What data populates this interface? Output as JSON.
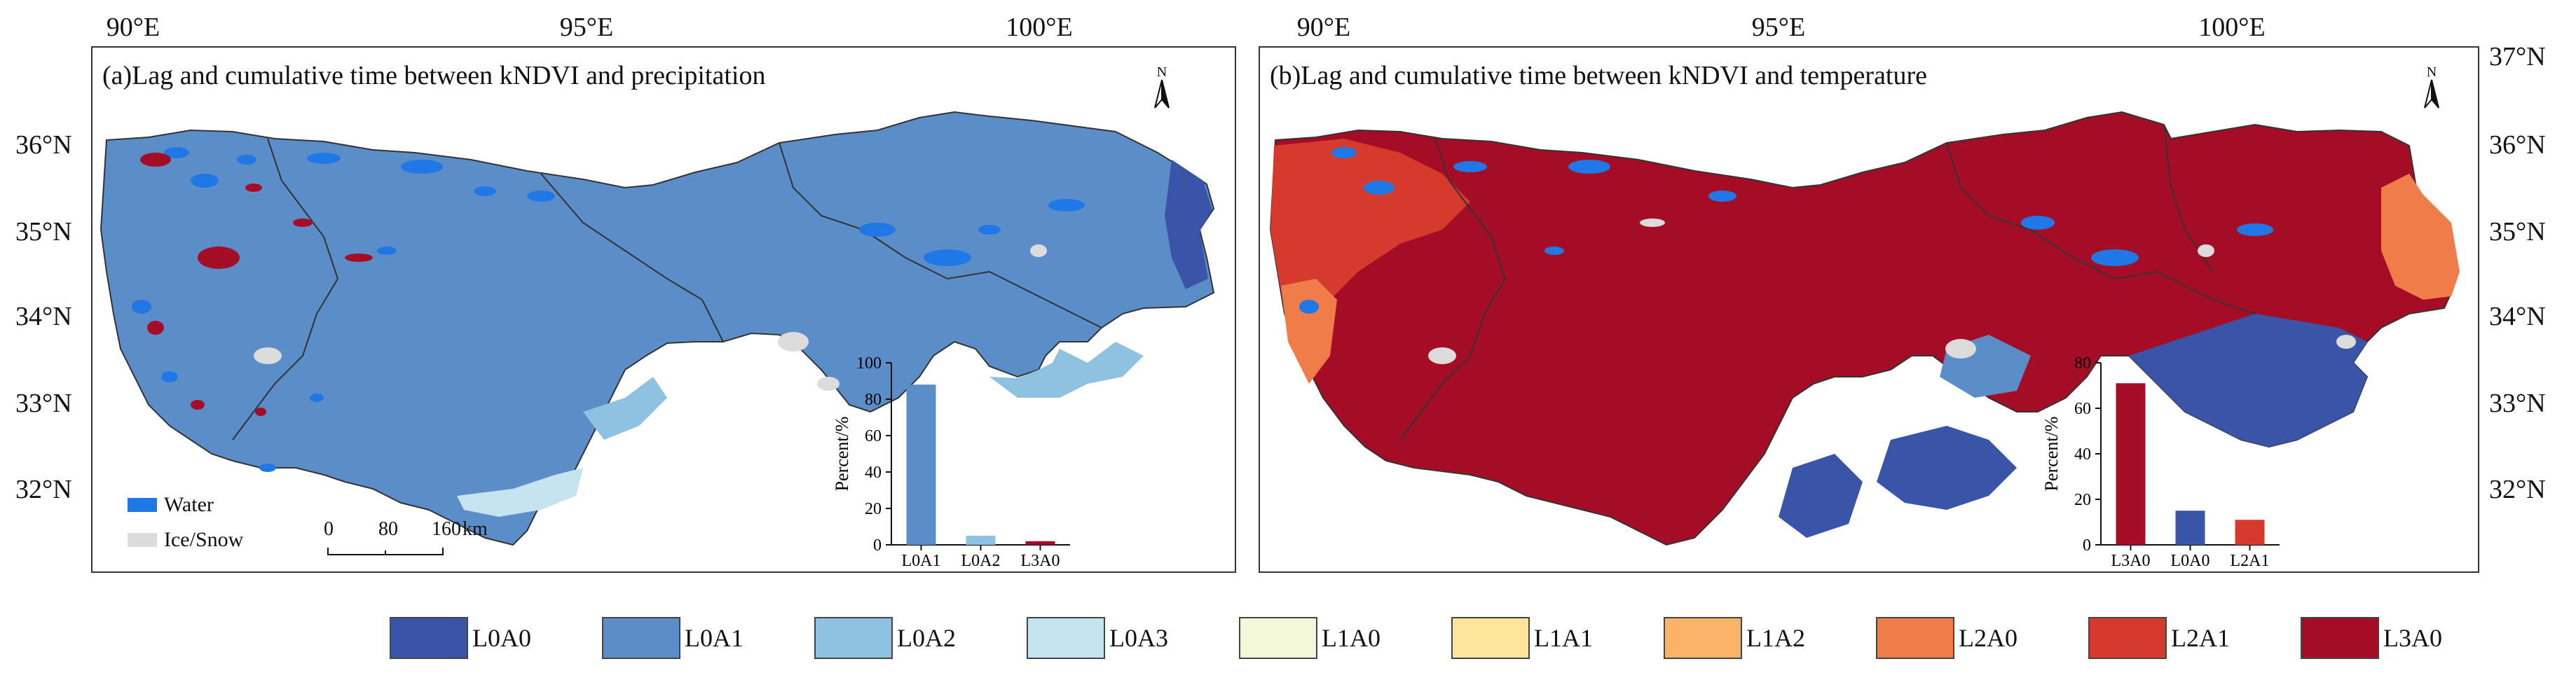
{
  "top_axis": {
    "labels": [
      "90°E",
      "95°E",
      "100°E"
    ]
  },
  "left_axis": {
    "labels": [
      "36°N",
      "35°N",
      "34°N",
      "33°N",
      "32°N"
    ]
  },
  "right_axis": {
    "labels": [
      "37°N",
      "36°N",
      "35°N",
      "34°N",
      "33°N",
      "32°N"
    ]
  },
  "panel_a": {
    "title": "(a)Lag and cumulative time between kNDVI and precipitation",
    "north": "N",
    "water_label": "Water",
    "ice_label": "Ice/Snow",
    "scale": {
      "labels": [
        "0",
        "80",
        "160"
      ],
      "unit": "km"
    }
  },
  "panel_b": {
    "title": "(b)Lag and cumulative time between kNDVI and temperature",
    "north": "N"
  },
  "colors": {
    "water": "#1f78e6",
    "ice": "#dcdcdc",
    "L0A0": "#3a55a8",
    "L0A1": "#5b8ec8",
    "L0A2": "#8fc1e0",
    "L0A3": "#c6e3f0",
    "L1A0": "#f4f8da",
    "L1A1": "#fde69c",
    "L1A2": "#fbb36a",
    "L2A0": "#f07c49",
    "L2A1": "#d63a2c",
    "L3A0": "#a50d27"
  },
  "legend": [
    "L0A0",
    "L0A1",
    "L0A2",
    "L0A3",
    "L1A0",
    "L1A1",
    "L1A2",
    "L2A0",
    "L2A1",
    "L3A0"
  ],
  "chart_data": [
    {
      "type": "bar",
      "categories": [
        "L0A1",
        "L0A2",
        "L3A0"
      ],
      "values": [
        88,
        5,
        2
      ],
      "ylabel": "Percent/%",
      "ylim": [
        0,
        100
      ],
      "yticks": [
        "0",
        "20",
        "40",
        "60",
        "80",
        "100"
      ],
      "colors": [
        "#5b8ec8",
        "#8fc1e0",
        "#a50d27"
      ]
    },
    {
      "type": "bar",
      "categories": [
        "L3A0",
        "L0A0",
        "L2A1"
      ],
      "values": [
        71,
        15,
        11
      ],
      "ylabel": "Percent/%",
      "ylim": [
        0,
        80
      ],
      "yticks": [
        "0",
        "20",
        "40",
        "60",
        "80"
      ],
      "colors": [
        "#a50d27",
        "#3a55a8",
        "#d63a2c"
      ]
    }
  ]
}
